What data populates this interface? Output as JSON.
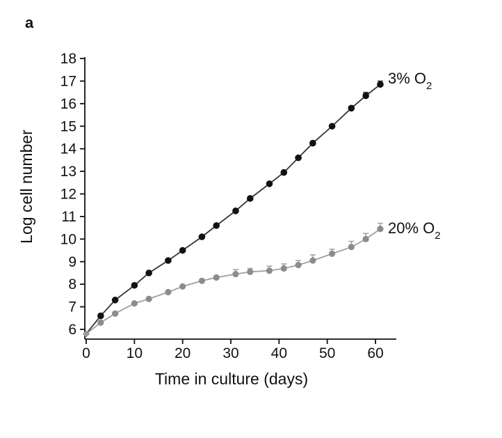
{
  "panel_label": "a",
  "chart_data": {
    "type": "line",
    "xlabel": "Time in culture (days)",
    "ylabel": "Log cell number",
    "xlim": [
      0,
      63
    ],
    "ylim": [
      5.7,
      18
    ],
    "x_ticks": [
      0,
      10,
      20,
      30,
      40,
      50,
      60
    ],
    "y_ticks": [
      6,
      7,
      8,
      9,
      10,
      11,
      12,
      13,
      14,
      15,
      16,
      17,
      18
    ],
    "grid": false,
    "series": [
      {
        "name": "3% O",
        "name_subscript": "2",
        "color": "#111111",
        "line_color": "#333333",
        "x": [
          0,
          3,
          6,
          10,
          13,
          17,
          20,
          24,
          27,
          31,
          34,
          38,
          41,
          44,
          47,
          51,
          55,
          58,
          61
        ],
        "y": [
          5.8,
          6.6,
          7.3,
          7.95,
          8.5,
          9.05,
          9.5,
          10.1,
          10.6,
          11.25,
          11.8,
          12.45,
          12.95,
          13.6,
          14.25,
          15.0,
          15.8,
          16.35,
          16.85
        ],
        "error": [
          0,
          0.05,
          0.05,
          0.05,
          0.05,
          0.05,
          0.05,
          0.05,
          0.05,
          0.05,
          0.05,
          0.05,
          0.05,
          0.05,
          0.05,
          0.05,
          0.08,
          0.15,
          0.15
        ]
      },
      {
        "name": "20% O",
        "name_subscript": "2",
        "color": "#8c8c8c",
        "line_color": "#a0a0a0",
        "x": [
          0,
          3,
          6,
          10,
          13,
          17,
          20,
          24,
          27,
          31,
          34,
          38,
          41,
          44,
          47,
          51,
          55,
          58,
          61
        ],
        "y": [
          5.8,
          6.3,
          6.7,
          7.15,
          7.35,
          7.65,
          7.9,
          8.15,
          8.3,
          8.45,
          8.55,
          8.6,
          8.7,
          8.85,
          9.05,
          9.35,
          9.65,
          10.0,
          10.45
        ],
        "error": [
          0,
          0.05,
          0.05,
          0.05,
          0.05,
          0.05,
          0.05,
          0.05,
          0.05,
          0.2,
          0.15,
          0.2,
          0.2,
          0.2,
          0.25,
          0.2,
          0.25,
          0.25,
          0.25
        ]
      }
    ]
  }
}
